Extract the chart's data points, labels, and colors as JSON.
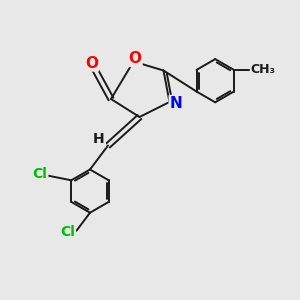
{
  "background_color": "#e8e8e8",
  "bond_color": "#1a1a1a",
  "atom_colors": {
    "O": "#ff0000",
    "N": "#0000ff",
    "Cl": "#00bb00",
    "C": "#1a1a1a",
    "H": "#1a1a1a"
  },
  "font_size": 10,
  "fig_width": 3.0,
  "fig_height": 3.0,
  "dpi": 100,
  "lw": 1.4,
  "xlim": [
    0,
    10
  ],
  "ylim": [
    0,
    10
  ]
}
